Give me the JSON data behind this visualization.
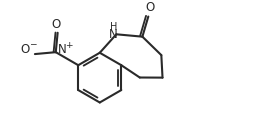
{
  "background": "#ffffff",
  "line_color": "#2a2a2a",
  "line_width": 1.5,
  "figsize": [
    2.54,
    1.38
  ],
  "dpi": 100,
  "font_size_atom": 7.5,
  "font_size_charge": 5.5,
  "xlim": [
    0.0,
    10.0
  ],
  "ylim": [
    0.0,
    5.5
  ]
}
